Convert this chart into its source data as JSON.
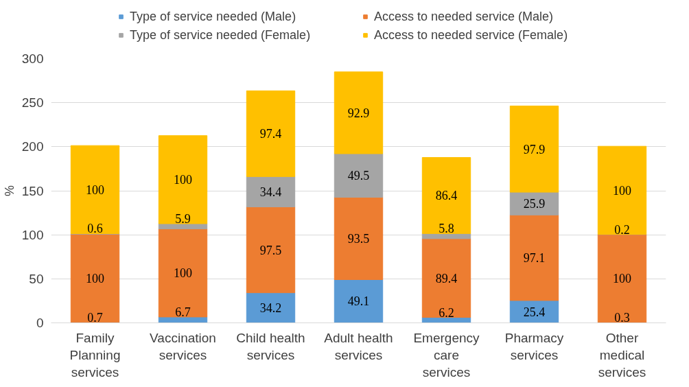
{
  "chart_data": {
    "type": "bar",
    "stacked": true,
    "ylabel": "%",
    "categories": [
      "Family Planning services",
      "Vaccination services",
      "Child health services",
      "Adult health services",
      "Emergency care services",
      "Pharmacy services",
      "Other medical services"
    ],
    "series": [
      {
        "name": "Type of service needed (Male)",
        "color": "#5b9bd5",
        "values": [
          0.7,
          6.7,
          34.2,
          49.1,
          6.2,
          25.4,
          0.3
        ]
      },
      {
        "name": "Access to needed service (Male)",
        "color": "#ed7d31",
        "values": [
          100,
          100,
          97.5,
          93.5,
          89.4,
          97.1,
          100
        ]
      },
      {
        "name": "Type of service needed (Female)",
        "color": "#a5a5a5",
        "values": [
          0.6,
          5.9,
          34.4,
          49.5,
          5.8,
          25.9,
          0.2
        ]
      },
      {
        "name": "Access to needed service (Female)",
        "color": "#ffc000",
        "values": [
          100,
          100,
          97.4,
          92.9,
          86.4,
          97.9,
          100
        ]
      }
    ],
    "ylim": [
      0,
      300
    ],
    "yticks": [
      0,
      50,
      100,
      150,
      200,
      250,
      300
    ],
    "grid": "y",
    "legend": "top",
    "data_labels": true
  }
}
